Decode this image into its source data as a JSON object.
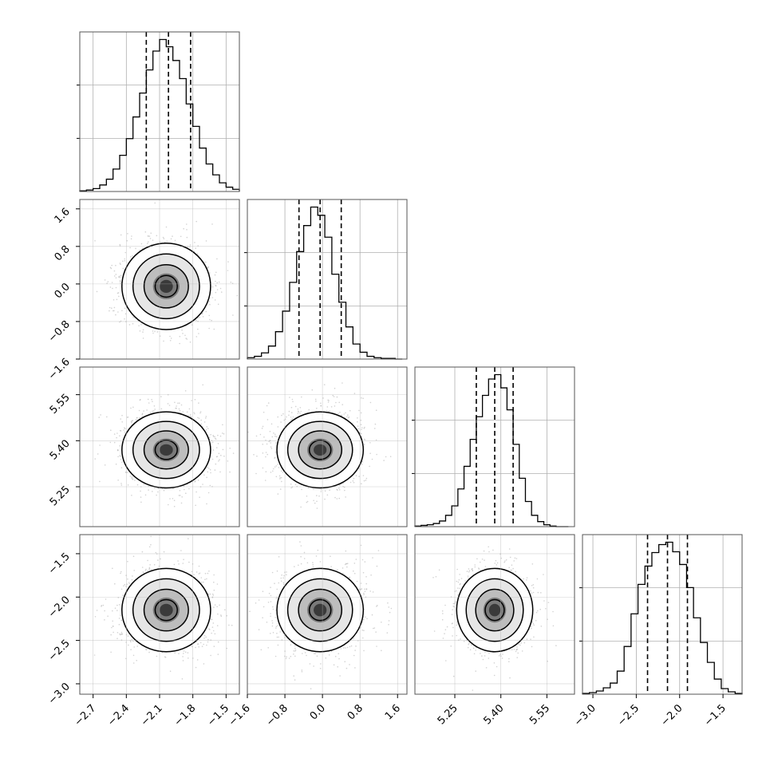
{
  "chart_data": {
    "type": "corner",
    "grid": true,
    "colors": {
      "hist": "#000000",
      "scatter": "#b4b4b4",
      "contour": "#000000",
      "grid": "#b0b0b0"
    },
    "parameters": [
      {
        "range": [
          -2.82,
          -1.38
        ],
        "ticks": [
          -2.7,
          -2.4,
          -2.1,
          -1.8,
          -1.5
        ],
        "tick_labels": [
          "−2.7",
          "−2.4",
          "−2.1",
          "−1.8",
          "−1.5"
        ],
        "quantiles": [
          -2.22,
          -2.02,
          -1.82
        ]
      },
      {
        "range": [
          -1.6,
          1.8
        ],
        "ticks": [
          -1.6,
          -0.8,
          0.0,
          0.8,
          1.6
        ],
        "tick_labels": [
          "−1.6",
          "−0.8",
          "0.0",
          "0.8",
          "1.6"
        ],
        "quantiles": [
          -0.5,
          -0.05,
          0.4
        ]
      },
      {
        "range": [
          5.12,
          5.64
        ],
        "ticks": [
          5.25,
          5.4,
          5.55
        ],
        "tick_labels": [
          "5.25",
          "5.40",
          "5.55"
        ],
        "quantiles": [
          5.32,
          5.38,
          5.44
        ]
      },
      {
        "range": [
          -3.12,
          -1.28
        ],
        "ticks": [
          -3.0,
          -2.5,
          -2.0,
          -1.5
        ],
        "tick_labels": [
          "−3.0",
          "−2.5",
          "−2.0",
          "−1.5"
        ],
        "quantiles": [
          -2.37,
          -2.14,
          -1.91
        ]
      }
    ],
    "histograms": [
      {
        "bins": [
          -2.82,
          -2.76,
          -2.7,
          -2.64,
          -2.58,
          -2.52,
          -2.46,
          -2.4,
          -2.34,
          -2.28,
          -2.22,
          -2.16,
          -2.1,
          -2.04,
          -1.98,
          -1.92,
          -1.86,
          -1.8,
          -1.74,
          -1.68,
          -1.62,
          -1.56,
          -1.5,
          -1.44,
          -1.38
        ],
        "counts": [
          1,
          2,
          4,
          9,
          17,
          31,
          50,
          73,
          103,
          136,
          168,
          194,
          210,
          200,
          181,
          156,
          121,
          90,
          60,
          38,
          23,
          12,
          6,
          3
        ]
      },
      {
        "bins": [
          -1.6,
          -1.45,
          -1.3,
          -1.15,
          -1.0,
          -0.85,
          -0.7,
          -0.55,
          -0.4,
          -0.25,
          -0.1,
          0.05,
          0.2,
          0.35,
          0.5,
          0.65,
          0.8,
          0.95,
          1.1,
          1.25,
          1.4,
          1.55,
          1.7
        ],
        "counts": [
          2,
          4,
          9,
          19,
          40,
          70,
          112,
          157,
          195,
          222,
          210,
          178,
          124,
          83,
          47,
          22,
          10,
          4,
          2,
          1,
          1,
          0
        ]
      },
      {
        "bins": [
          5.12,
          5.14,
          5.16,
          5.18,
          5.2,
          5.22,
          5.24,
          5.26,
          5.28,
          5.3,
          5.32,
          5.34,
          5.36,
          5.38,
          5.4,
          5.42,
          5.44,
          5.46,
          5.48,
          5.5,
          5.52,
          5.54,
          5.56,
          5.58,
          5.6,
          5.62
        ],
        "counts": [
          1,
          2,
          3,
          5,
          9,
          18,
          33,
          60,
          96,
          139,
          175,
          209,
          235,
          242,
          221,
          186,
          131,
          77,
          40,
          18,
          8,
          3,
          1,
          0,
          0
        ]
      },
      {
        "bins": [
          -3.12,
          -3.04,
          -2.96,
          -2.88,
          -2.8,
          -2.72,
          -2.64,
          -2.56,
          -2.48,
          -2.4,
          -2.32,
          -2.24,
          -2.16,
          -2.08,
          -2.0,
          -1.92,
          -1.84,
          -1.76,
          -1.68,
          -1.6,
          -1.52,
          -1.44,
          -1.36,
          -1.28
        ],
        "counts": [
          1,
          2,
          4,
          8,
          14,
          29,
          60,
          101,
          138,
          161,
          178,
          188,
          191,
          179,
          163,
          134,
          96,
          65,
          40,
          19,
          7,
          3,
          1
        ]
      }
    ],
    "pairs": [
      {
        "x": 0,
        "y": 1,
        "center": [
          -2.04,
          -0.05
        ],
        "sigma": [
          0.2,
          0.46
        ],
        "rho": 0.0
      },
      {
        "x": 0,
        "y": 2,
        "center": [
          -2.04,
          5.37
        ],
        "sigma": [
          0.2,
          0.062
        ],
        "rho": 0.0
      },
      {
        "x": 1,
        "y": 2,
        "center": [
          -0.05,
          5.37
        ],
        "sigma": [
          0.46,
          0.062
        ],
        "rho": 0.0
      },
      {
        "x": 0,
        "y": 3,
        "center": [
          -2.04,
          -2.15
        ],
        "sigma": [
          0.2,
          0.24
        ],
        "rho": 0.0
      },
      {
        "x": 1,
        "y": 3,
        "center": [
          -0.05,
          -2.15
        ],
        "sigma": [
          0.46,
          0.24
        ],
        "rho": 0.0
      },
      {
        "x": 2,
        "y": 3,
        "center": [
          5.38,
          -2.15
        ],
        "sigma": [
          0.062,
          0.24
        ],
        "rho": 0.0
      }
    ]
  }
}
